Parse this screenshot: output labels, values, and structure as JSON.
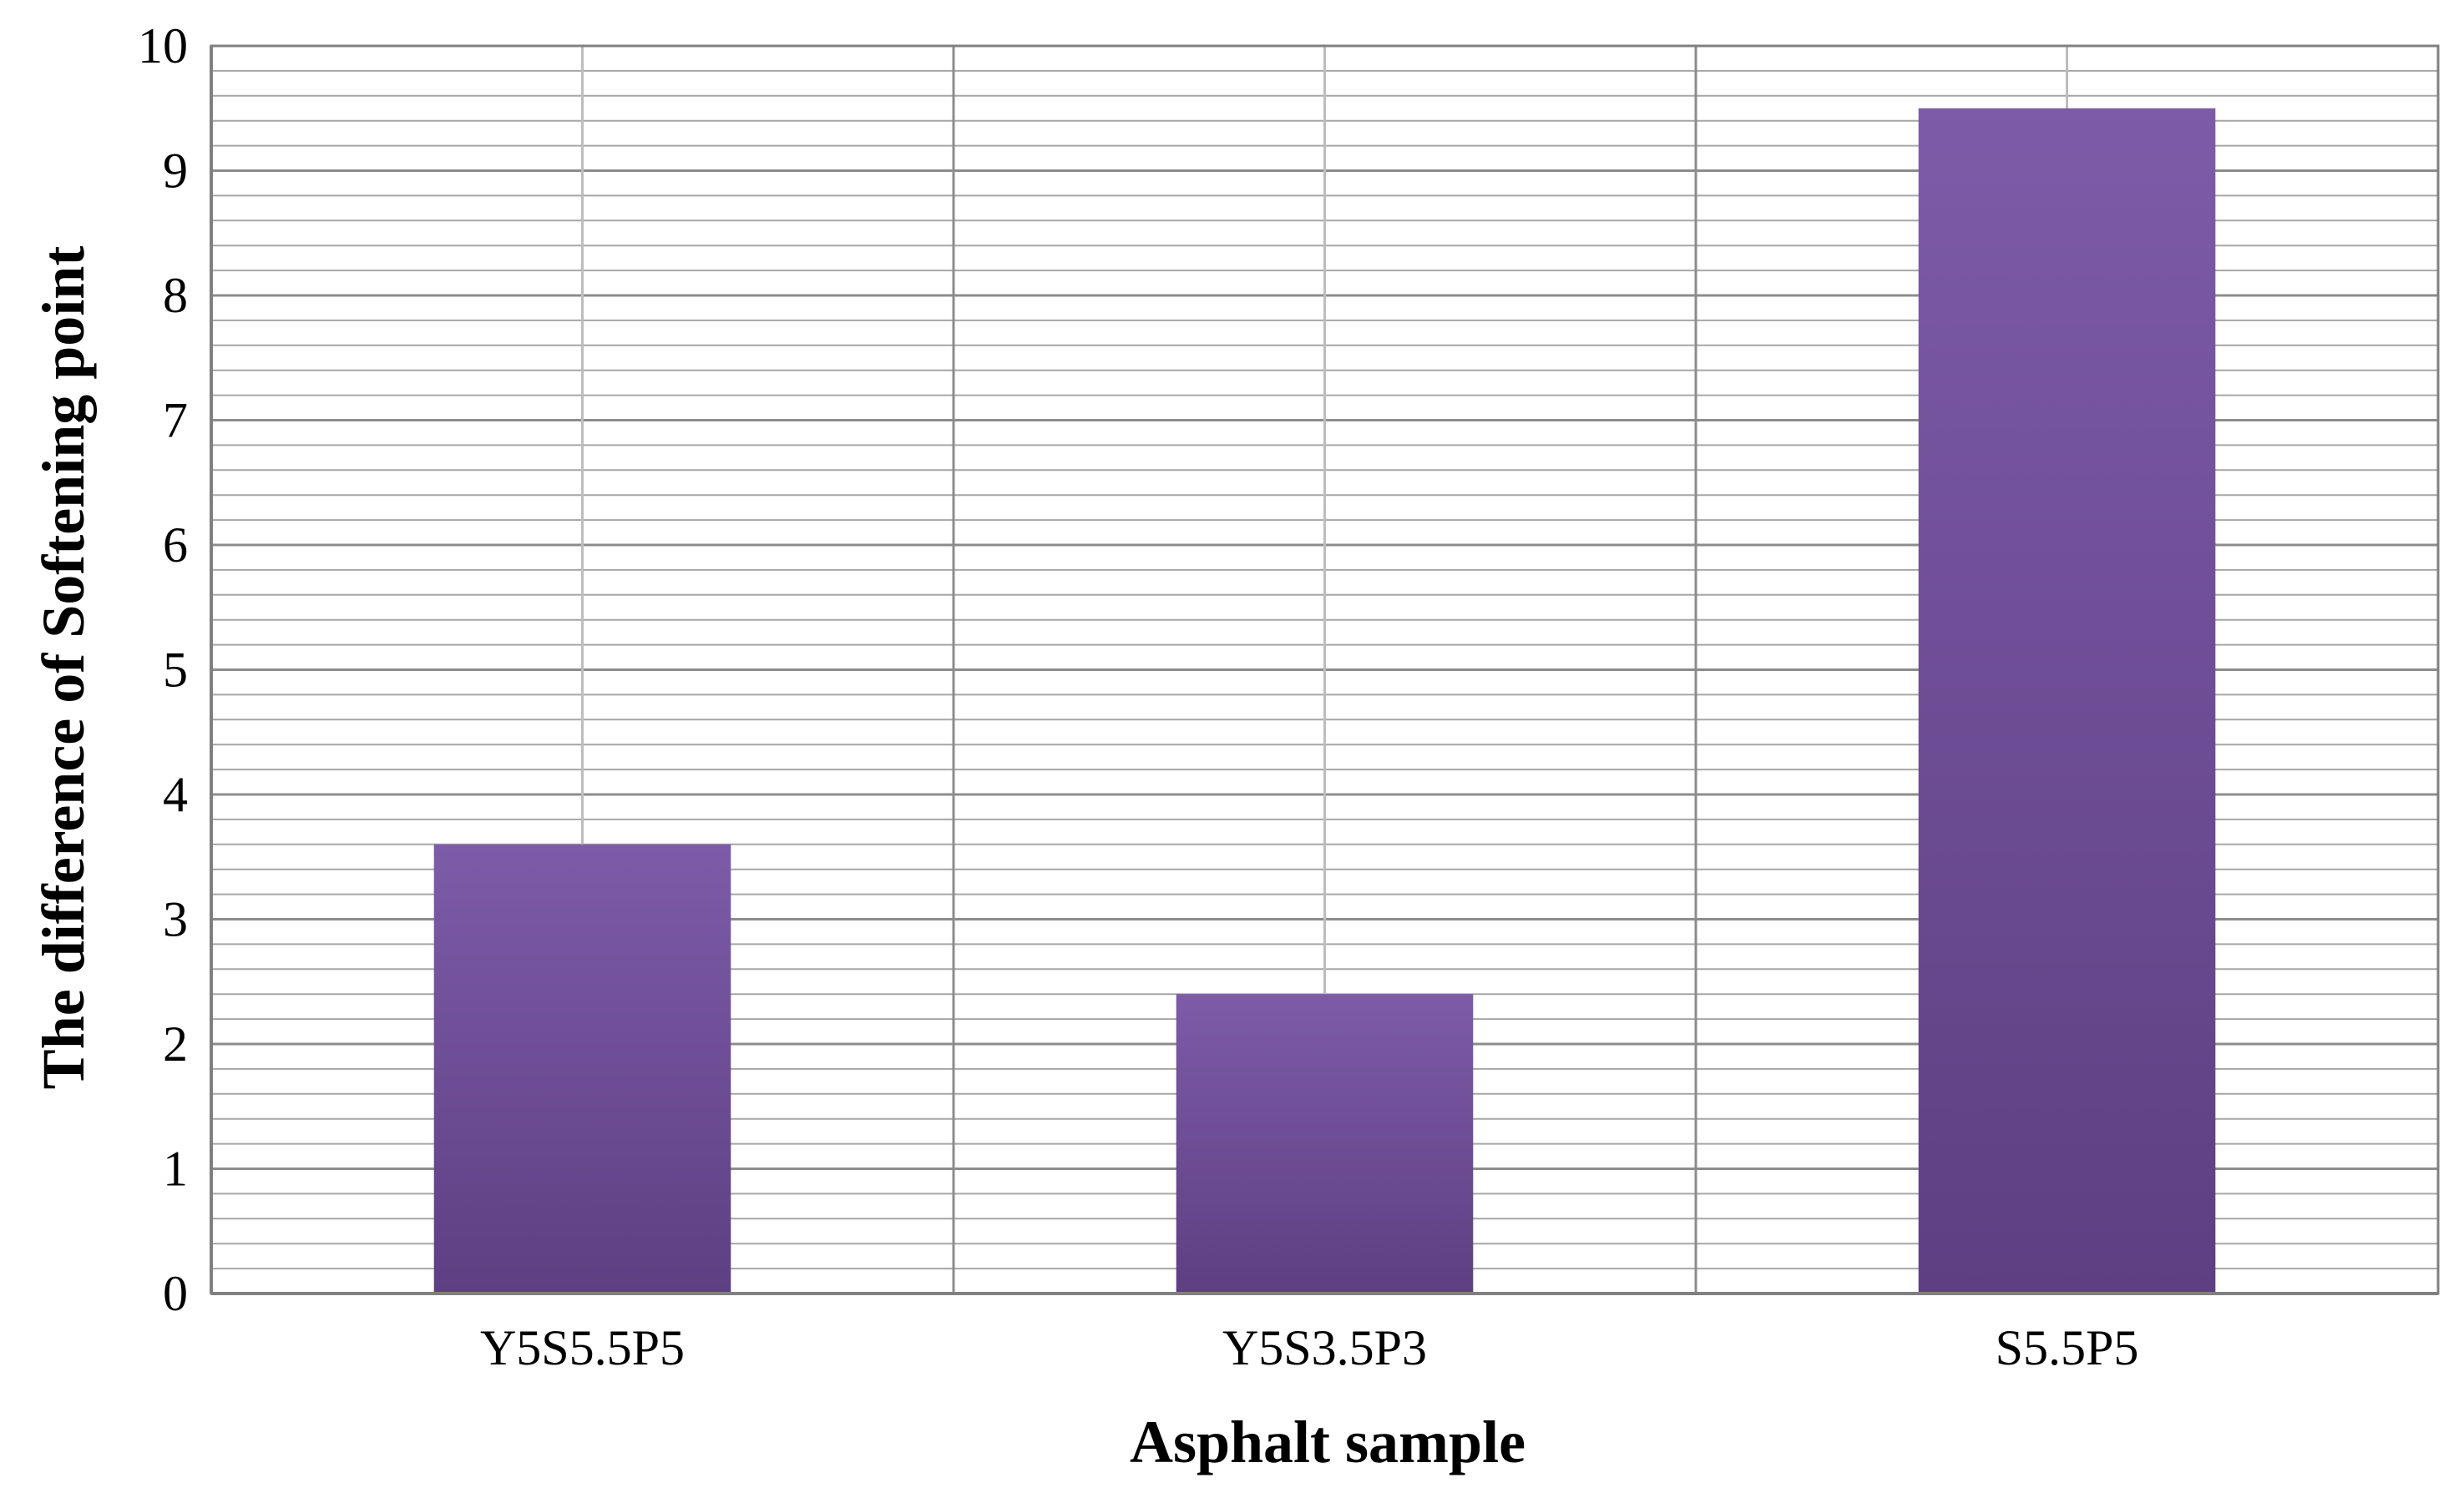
{
  "chart_data": {
    "type": "bar",
    "title": "",
    "xlabel": "Asphalt sample",
    "ylabel": "The difference of Softening point",
    "categories": [
      "Y5S5.5P5",
      "Y5S3.5P3",
      "S5.5P5"
    ],
    "values": [
      3.6,
      2.4,
      9.5
    ],
    "ylim": [
      0,
      10
    ],
    "yticks": [
      "0",
      "1",
      "2",
      "3",
      "4",
      "5",
      "6",
      "7",
      "8",
      "9",
      "10"
    ],
    "minor_tick_step": 0.2,
    "grid": true,
    "legend": "none",
    "colors": {
      "bar_top": "#7d5ba8",
      "bar_bottom": "#5e3f82",
      "major_grid": "#8c8c8c",
      "minor_grid": "#a6a6a6",
      "category_grid": "#bdbdbd",
      "axis": "#808080"
    }
  }
}
